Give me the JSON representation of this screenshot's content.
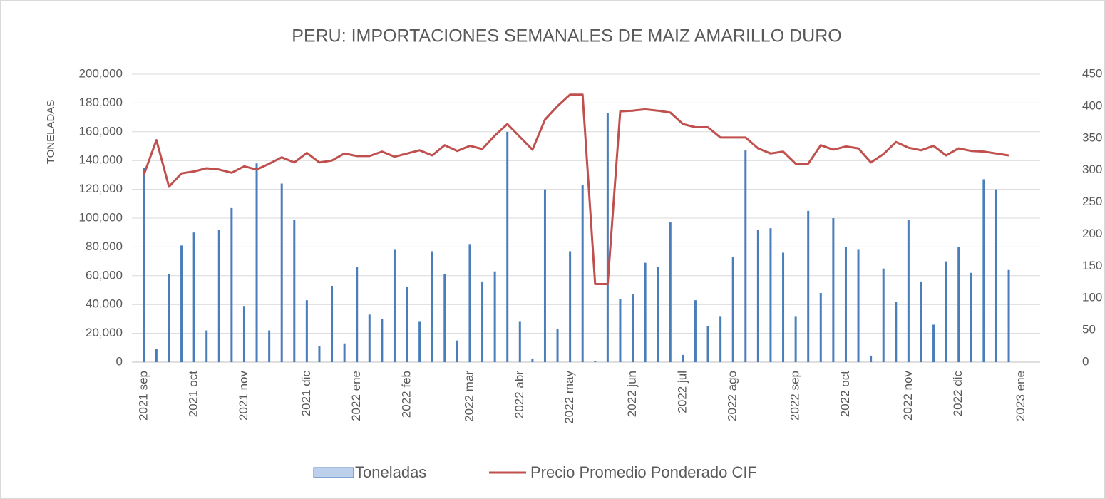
{
  "chart_data": {
    "type": "bar-line",
    "title": "PERU: IMPORTACIONES SEMANALES DE MAIZ AMARILLO DURO",
    "y_label": "TONELADAS",
    "categories": [
      "2021 sep",
      null,
      null,
      null,
      "2021 oct",
      null,
      null,
      null,
      "2021 nov",
      null,
      null,
      null,
      null,
      "2021 dic",
      null,
      null,
      null,
      "2022 ene",
      null,
      null,
      null,
      "2022 feb",
      null,
      null,
      null,
      null,
      "2022 mar",
      null,
      null,
      null,
      "2022 abr",
      null,
      null,
      null,
      "2022 may",
      null,
      null,
      null,
      null,
      "2022 jun",
      null,
      null,
      null,
      "2022 jul",
      null,
      null,
      null,
      "2022 ago",
      null,
      null,
      null,
      null,
      "2022 sep",
      null,
      null,
      null,
      "2022 oct",
      null,
      null,
      null,
      null,
      "2022 nov",
      null,
      null,
      null,
      "2022 dic",
      null,
      null,
      null,
      null,
      "2023 ene",
      null
    ],
    "series": [
      {
        "name": "Toneladas",
        "color": "#4a7ebb",
        "axis": "y",
        "values": [
          135000,
          9000,
          61000,
          81000,
          90000,
          22000,
          92000,
          107000,
          39000,
          138000,
          22000,
          124000,
          99000,
          43000,
          11000,
          53000,
          13000,
          66000,
          33000,
          30000,
          78000,
          52000,
          28000,
          77000,
          61000,
          15000,
          82000,
          56000,
          63000,
          160000,
          28000,
          2500,
          120000,
          23000,
          77000,
          123000,
          500,
          173000,
          44000,
          47000,
          69000,
          66000,
          97000,
          5000,
          43000,
          25000,
          32000,
          73000,
          147000,
          92000,
          93000,
          76000,
          32000,
          105000,
          48000,
          100000,
          80000,
          78000,
          4500,
          65000,
          42000,
          99000,
          56000,
          26000,
          70000,
          80000,
          62000,
          127000,
          120000,
          64000,
          null,
          null
        ]
      },
      {
        "name": "Precio Promedio Ponderado CIF",
        "color": "#c0504d",
        "axis": "y2",
        "values": [
          293,
          347,
          274,
          295,
          298,
          303,
          301,
          296,
          306,
          301,
          310,
          320,
          312,
          327,
          312,
          315,
          326,
          322,
          322,
          329,
          321,
          326,
          331,
          323,
          339,
          330,
          338,
          333,
          354,
          372,
          352,
          332,
          379,
          400,
          418,
          418,
          122,
          122,
          392,
          393,
          395,
          393,
          390,
          372,
          367,
          367,
          351,
          351,
          351,
          334,
          326,
          329,
          310,
          310,
          339,
          332,
          337,
          334,
          312,
          325,
          344,
          335,
          331,
          338,
          323,
          334,
          330,
          329,
          326,
          323,
          null,
          null
        ]
      }
    ],
    "ylim": [
      0,
      200000
    ],
    "yticks": [
      0,
      {
        "value": 20000,
        "label": "20,000"
      },
      {
        "value": 40000,
        "label": "40,000"
      },
      {
        "value": 60000,
        "label": "60,000"
      },
      {
        "value": 80000,
        "label": "80,000"
      },
      {
        "value": 100000,
        "label": "100,000"
      },
      {
        "value": 120000,
        "label": "120,000"
      },
      {
        "value": 140000,
        "label": "140,000"
      },
      {
        "value": 160000,
        "label": "160,000"
      },
      {
        "value": 180000,
        "label": "180,000"
      },
      {
        "value": 200000,
        "label": "200,000"
      }
    ],
    "y2lim": [
      0,
      450
    ],
    "y2ticks": [
      0,
      50,
      100,
      150,
      200,
      250,
      300,
      350,
      400,
      450
    ],
    "grid": true,
    "legend": "bottom"
  }
}
